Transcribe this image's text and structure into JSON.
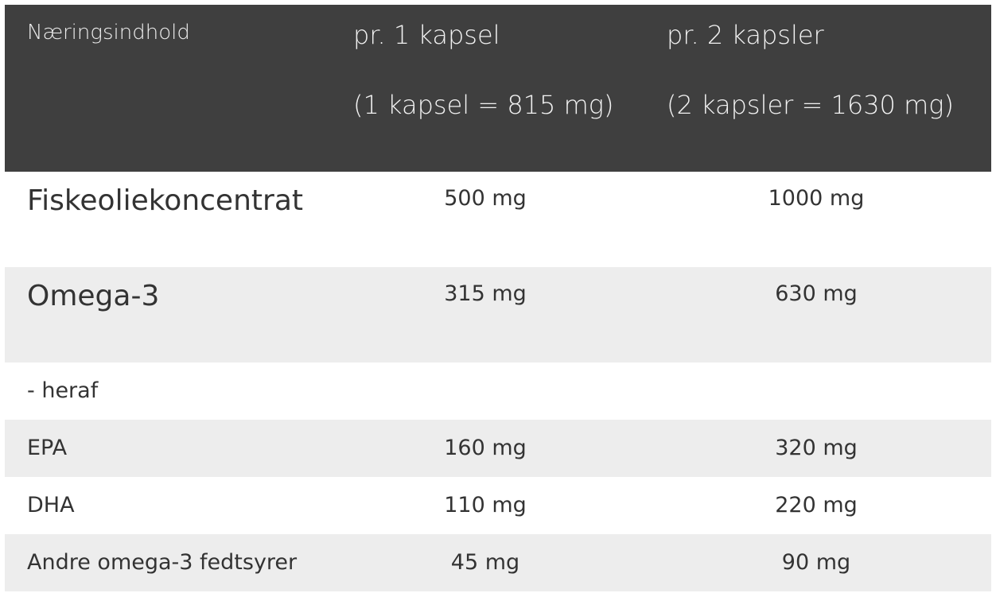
{
  "header": {
    "label": "Næringsindhold",
    "col1_line1": "pr. 1 kapsel",
    "col1_line2": "(1 kapsel = 815 mg)",
    "col2_line1": "pr. 2 kapsler",
    "col2_line2": "(2 kapsler = 1630 mg)"
  },
  "rows": [
    {
      "name": "Fiskeoliekoncentrat",
      "v1": "500 mg",
      "v2": "1000 mg"
    },
    {
      "name": "Omega-3",
      "v1": "315 mg",
      "v2": "630 mg"
    },
    {
      "name": "- heraf",
      "v1": "",
      "v2": ""
    },
    {
      "name": "EPA",
      "v1": "160 mg",
      "v2": "320 mg"
    },
    {
      "name": "DHA",
      "v1": "110 mg",
      "v2": "220 mg"
    },
    {
      "name": "Andre omega-3 fedtsyrer",
      "v1": "45 mg",
      "v2": "90 mg"
    }
  ],
  "colors": {
    "header_bg": "#3f3f3f",
    "stripe_bg": "#ededed",
    "text": "#333333"
  }
}
